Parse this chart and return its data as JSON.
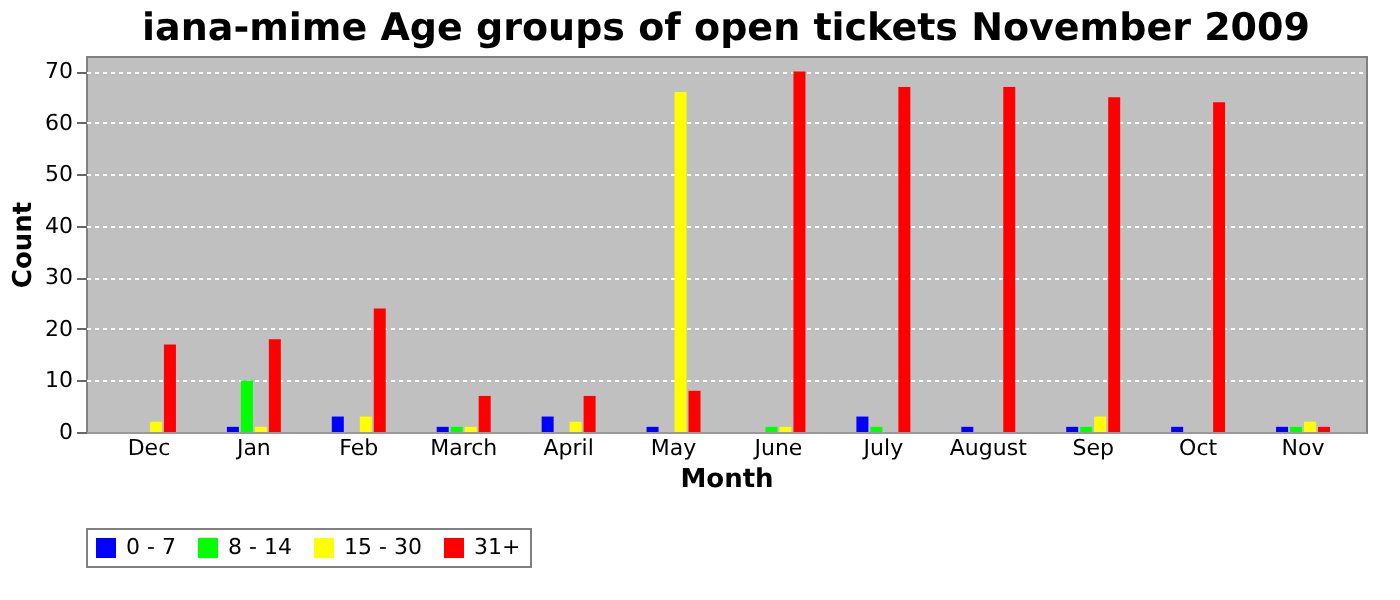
{
  "chart_data": {
    "type": "bar",
    "title": "iana-mime Age groups of open tickets November 2009",
    "xlabel": "Month",
    "ylabel": "Count",
    "categories": [
      "Dec",
      "Jan",
      "Feb",
      "March",
      "April",
      "May",
      "June",
      "July",
      "August",
      "Sep",
      "Oct",
      "Nov"
    ],
    "series": [
      {
        "name": "0 - 7",
        "color": "#0000ff",
        "values": [
          0,
          1,
          3,
          1,
          3,
          1,
          0,
          3,
          1,
          1,
          1,
          1
        ]
      },
      {
        "name": "8 - 14",
        "color": "#00ff00",
        "values": [
          0,
          10,
          0,
          1,
          0,
          0,
          1,
          1,
          0,
          1,
          0,
          1
        ]
      },
      {
        "name": "15 - 30",
        "color": "#ffff00",
        "values": [
          2,
          1,
          3,
          1,
          2,
          66,
          1,
          0,
          0,
          3,
          0,
          2
        ]
      },
      {
        "name": "31+",
        "color": "#ff0000",
        "values": [
          17,
          18,
          24,
          7,
          7,
          8,
          70,
          67,
          67,
          65,
          64,
          1
        ]
      }
    ],
    "ylim": [
      0,
      73
    ],
    "yticks": [
      0,
      10,
      20,
      30,
      40,
      50,
      60,
      70
    ],
    "grid": "y",
    "legend": "bottom"
  }
}
